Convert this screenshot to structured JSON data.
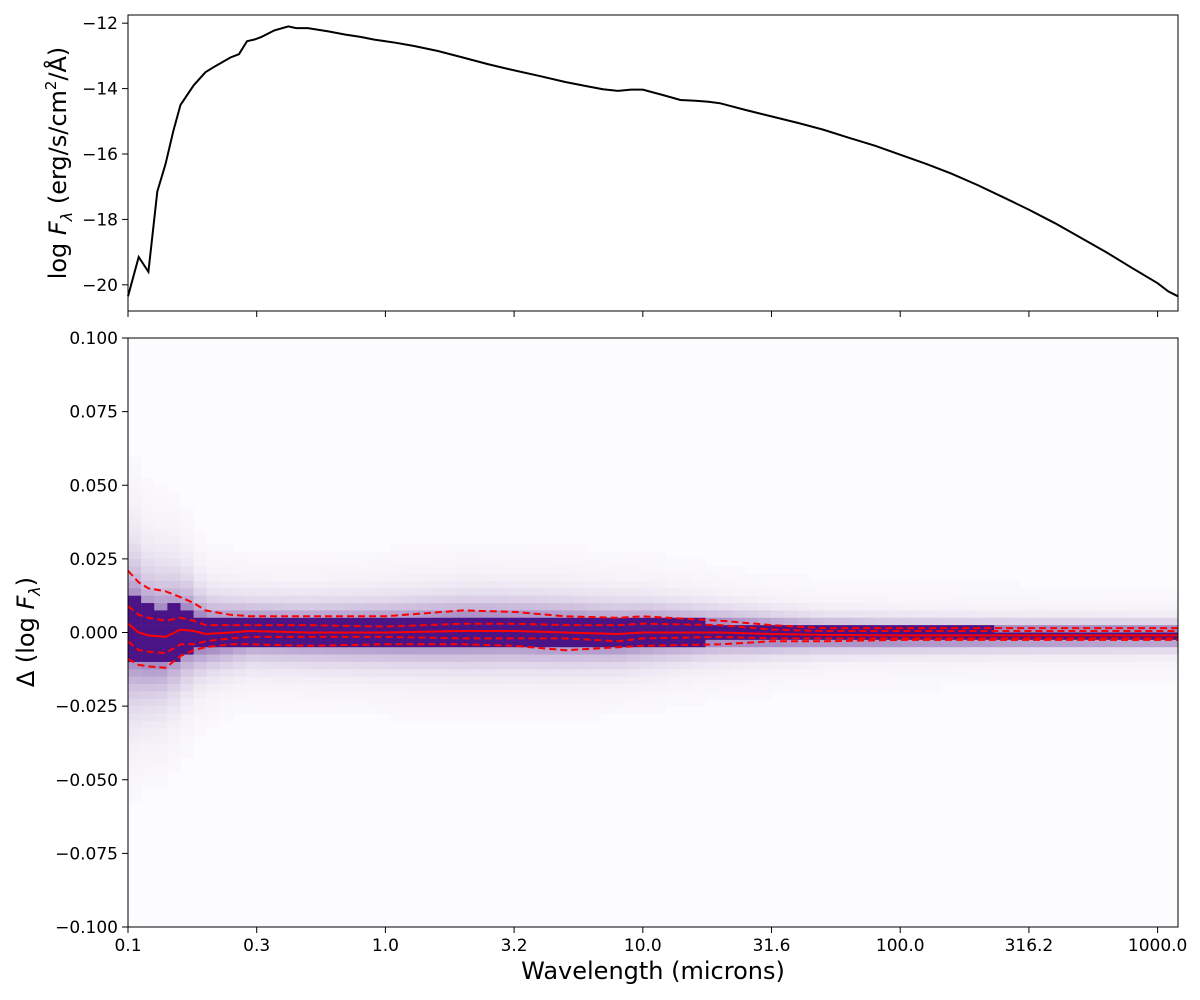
{
  "chart_data": [
    {
      "id": "sed",
      "type": "line",
      "x_scale": "log",
      "xlim": [
        0.1,
        1200
      ],
      "ylim": [
        -20.8,
        -11.75
      ],
      "ylabel_prefix": "log ",
      "ylabel_var": "F",
      "ylabel_sub": "λ",
      "ylabel_units_a": " (erg/s/cm",
      "ylabel_units_sup": "2",
      "ylabel_units_b": "/Å)",
      "y_ticks": [
        {
          "value": -12,
          "label": "−12"
        },
        {
          "value": -14,
          "label": "−14"
        },
        {
          "value": -16,
          "label": "−16"
        },
        {
          "value": -18,
          "label": "−18"
        },
        {
          "value": -20,
          "label": "−20"
        }
      ],
      "line_color": "#000000",
      "series": [
        {
          "x": [
            0.1,
            0.11,
            0.12,
            0.13,
            0.14,
            0.15,
            0.16,
            0.18,
            0.2,
            0.22,
            0.25,
            0.27,
            0.29,
            0.31,
            0.33,
            0.37,
            0.42,
            0.45,
            0.5,
            0.6,
            0.7,
            0.8,
            0.9,
            1.0,
            1.1,
            1.3,
            1.6,
            2.0,
            2.5,
            3.0,
            4.0,
            5.0,
            6.0,
            7.0,
            8.0,
            9.0,
            10.0,
            12.0,
            14.0,
            16.0,
            18.0,
            20.0,
            25.0,
            31.6,
            40,
            50,
            63,
            80,
            100,
            126,
            158,
            200,
            251,
            316,
            400,
            500,
            631,
            794,
            1000,
            1100,
            1200
          ],
          "y": [
            -20.35,
            -19.15,
            -19.6,
            -17.15,
            -16.3,
            -15.3,
            -14.5,
            -13.9,
            -13.5,
            -13.3,
            -13.05,
            -12.95,
            -12.55,
            -12.5,
            -12.42,
            -12.22,
            -12.1,
            -12.15,
            -12.15,
            -12.25,
            -12.35,
            -12.42,
            -12.5,
            -12.55,
            -12.6,
            -12.7,
            -12.85,
            -13.05,
            -13.25,
            -13.4,
            -13.62,
            -13.8,
            -13.92,
            -14.02,
            -14.07,
            -14.03,
            -14.03,
            -14.2,
            -14.35,
            -14.37,
            -14.4,
            -14.45,
            -14.65,
            -14.85,
            -15.05,
            -15.25,
            -15.5,
            -15.75,
            -16.02,
            -16.3,
            -16.6,
            -16.95,
            -17.32,
            -17.7,
            -18.12,
            -18.55,
            -19.0,
            -19.48,
            -19.95,
            -20.2,
            -20.35
          ]
        }
      ]
    },
    {
      "id": "residuals",
      "type": "heatmap",
      "x_scale": "log",
      "xlim": [
        0.1,
        1200
      ],
      "ylim": [
        -0.1,
        0.1
      ],
      "xlabel": "Wavelength (microns)",
      "ylabel_prefix": "Δ (log ",
      "ylabel_var": "F",
      "ylabel_sub": "λ",
      "ylabel_suffix": ")",
      "x_ticks": [
        {
          "value": 0.1,
          "label": "0.1"
        },
        {
          "value": 0.3162,
          "label": "0.3"
        },
        {
          "value": 1.0,
          "label": "1.0"
        },
        {
          "value": 3.162,
          "label": "3.2"
        },
        {
          "value": 10.0,
          "label": "10.0"
        },
        {
          "value": 31.62,
          "label": "31.6"
        },
        {
          "value": 100.0,
          "label": "100.0"
        },
        {
          "value": 316.2,
          "label": "316.2"
        },
        {
          "value": 1000.0,
          "label": "1000.0"
        }
      ],
      "y_ticks": [
        {
          "value": 0.1,
          "label": "0.100"
        },
        {
          "value": 0.075,
          "label": "0.075"
        },
        {
          "value": 0.05,
          "label": "0.050"
        },
        {
          "value": 0.025,
          "label": "0.025"
        },
        {
          "value": 0.0,
          "label": "0.000"
        },
        {
          "value": -0.025,
          "label": "−0.025"
        },
        {
          "value": -0.05,
          "label": "−0.050"
        },
        {
          "value": -0.075,
          "label": "−0.075"
        },
        {
          "value": -0.1,
          "label": "−0.100"
        }
      ],
      "colormap": [
        "#fcfbfd",
        "#4a1486"
      ],
      "line_color": "#ff0000",
      "spread_profile": {
        "x": [
          0.1,
          0.12,
          0.14,
          0.16,
          0.2,
          0.3,
          0.5,
          1.0,
          2.0,
          5.0,
          10,
          20,
          50,
          100,
          300,
          1000,
          1200
        ],
        "sigma": [
          0.012,
          0.01,
          0.0095,
          0.0085,
          0.0055,
          0.0045,
          0.0045,
          0.0048,
          0.0052,
          0.005,
          0.0045,
          0.0035,
          0.0026,
          0.0024,
          0.0022,
          0.0021,
          0.0021
        ]
      },
      "percentile_lines": [
        {
          "name": "median",
          "style": "solid",
          "x": [
            0.1,
            0.11,
            0.12,
            0.14,
            0.16,
            0.18,
            0.2,
            0.25,
            0.3,
            0.5,
            1.0,
            2.0,
            3.16,
            5.0,
            8.0,
            10,
            20,
            31.6,
            50,
            100,
            300,
            1000,
            1200
          ],
          "y": [
            0.003,
            0.0,
            -0.001,
            -0.0015,
            0.001,
            0.0005,
            -0.0005,
            0.0,
            0.0005,
            0.0,
            0.0,
            0.0005,
            0.0005,
            0.0,
            -0.0005,
            0.0,
            0.0,
            -0.0005,
            -0.0008,
            -0.001,
            -0.001,
            -0.001,
            -0.001
          ]
        },
        {
          "name": "p16",
          "style": "dashed",
          "x": [
            0.1,
            0.11,
            0.12,
            0.14,
            0.16,
            0.18,
            0.2,
            0.25,
            0.3,
            0.5,
            1.0,
            2.0,
            3.16,
            5.0,
            8.0,
            10,
            20,
            31.6,
            50,
            100,
            300,
            1000,
            1200
          ],
          "y": [
            -0.003,
            -0.006,
            -0.0065,
            -0.007,
            -0.004,
            -0.004,
            -0.003,
            -0.002,
            -0.0015,
            -0.0015,
            -0.0015,
            -0.002,
            -0.002,
            -0.002,
            -0.003,
            -0.002,
            -0.0015,
            -0.002,
            -0.002,
            -0.002,
            -0.002,
            -0.002,
            -0.002
          ]
        },
        {
          "name": "p84",
          "style": "dashed",
          "x": [
            0.1,
            0.11,
            0.12,
            0.14,
            0.16,
            0.18,
            0.2,
            0.25,
            0.3,
            0.5,
            1.0,
            2.0,
            3.16,
            5.0,
            8.0,
            10,
            20,
            31.6,
            50,
            100,
            300,
            1000,
            1200
          ],
          "y": [
            0.009,
            0.006,
            0.005,
            0.004,
            0.005,
            0.004,
            0.0025,
            0.0025,
            0.0025,
            0.0025,
            0.002,
            0.003,
            0.003,
            0.0025,
            0.0025,
            0.003,
            0.0025,
            0.001,
            0.0005,
            0.0005,
            0.0005,
            0.0005,
            0.0005
          ]
        },
        {
          "name": "p2.5",
          "style": "dashed",
          "x": [
            0.1,
            0.11,
            0.12,
            0.14,
            0.16,
            0.18,
            0.2,
            0.25,
            0.3,
            0.5,
            1.0,
            2.0,
            3.16,
            5.0,
            8.0,
            10,
            20,
            31.6,
            50,
            100,
            300,
            1000,
            1200
          ],
          "y": [
            -0.009,
            -0.011,
            -0.0115,
            -0.012,
            -0.008,
            -0.006,
            -0.005,
            -0.004,
            -0.004,
            -0.0045,
            -0.004,
            -0.004,
            -0.0045,
            -0.006,
            -0.005,
            -0.0045,
            -0.004,
            -0.003,
            -0.003,
            -0.0025,
            -0.0025,
            -0.0025,
            -0.0025
          ]
        },
        {
          "name": "p97.5",
          "style": "dashed",
          "x": [
            0.1,
            0.11,
            0.12,
            0.14,
            0.16,
            0.18,
            0.2,
            0.25,
            0.3,
            0.5,
            1.0,
            2.0,
            3.16,
            5.0,
            8.0,
            10,
            20,
            31.6,
            50,
            100,
            300,
            1000,
            1200
          ],
          "y": [
            0.021,
            0.017,
            0.015,
            0.014,
            0.012,
            0.01,
            0.0075,
            0.006,
            0.0055,
            0.0055,
            0.0055,
            0.0075,
            0.007,
            0.0055,
            0.005,
            0.0055,
            0.004,
            0.0025,
            0.0015,
            0.0015,
            0.0015,
            0.0015,
            0.0015
          ]
        }
      ]
    }
  ]
}
